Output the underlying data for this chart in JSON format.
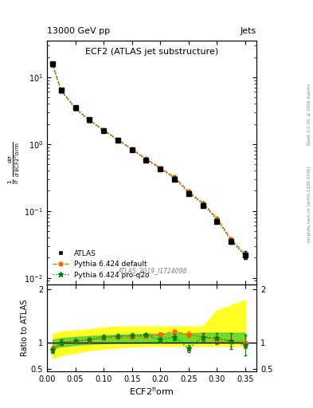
{
  "title_main": "ECF2 (ATLAS jet substructure)",
  "header_left": "13000 GeV pp",
  "header_right": "Jets",
  "watermark": "ATLAS_2019_I1724098",
  "right_label_top": "Rivet 3.1.10, ≥ 300k events",
  "right_label_bottom": "mcplots.cern.ch [arXiv:1306.3436]",
  "xlabel": "ECF2⁺orm",
  "ylabel_ratio": "Ratio to ATLAS",
  "ecf2_x": [
    0.01,
    0.025,
    0.05,
    0.075,
    0.1,
    0.125,
    0.15,
    0.175,
    0.2,
    0.225,
    0.25,
    0.275,
    0.3,
    0.325,
    0.35
  ],
  "atlas_y": [
    16.0,
    6.5,
    3.5,
    2.3,
    1.6,
    1.15,
    0.82,
    0.58,
    0.42,
    0.3,
    0.18,
    0.12,
    0.07,
    0.035,
    0.022
  ],
  "atlas_yerr": [
    0.5,
    0.2,
    0.1,
    0.07,
    0.05,
    0.04,
    0.03,
    0.02,
    0.015,
    0.012,
    0.008,
    0.005,
    0.004,
    0.003,
    0.003
  ],
  "pythia_default_y": [
    15.5,
    6.4,
    3.45,
    2.28,
    1.62,
    1.17,
    0.84,
    0.6,
    0.44,
    0.32,
    0.195,
    0.132,
    0.078,
    0.038,
    0.022
  ],
  "pythia_proq2o_y": [
    15.3,
    6.3,
    3.42,
    2.25,
    1.6,
    1.15,
    0.83,
    0.59,
    0.43,
    0.31,
    0.185,
    0.128,
    0.074,
    0.036,
    0.021
  ],
  "ratio_default": [
    0.87,
    1.0,
    1.02,
    1.04,
    1.08,
    1.1,
    1.1,
    1.12,
    1.15,
    1.2,
    1.15,
    1.1,
    1.05,
    1.02,
    1.0
  ],
  "ratio_default_err": [
    0.05,
    0.04,
    0.03,
    0.03,
    0.03,
    0.03,
    0.03,
    0.03,
    0.04,
    0.04,
    0.05,
    0.06,
    0.08,
    0.1,
    0.12
  ],
  "ratio_proq2o": [
    0.85,
    1.0,
    1.03,
    1.05,
    1.1,
    1.12,
    1.13,
    1.14,
    1.05,
    1.1,
    0.88,
    1.1,
    1.08,
    1.02,
    0.95
  ],
  "ratio_proq2o_err": [
    0.06,
    0.05,
    0.04,
    0.04,
    0.04,
    0.04,
    0.04,
    0.04,
    0.05,
    0.06,
    0.07,
    0.08,
    0.1,
    0.15,
    0.2
  ],
  "band_yellow_lo": [
    0.7,
    0.75,
    0.8,
    0.85,
    0.88,
    0.9,
    0.92,
    0.93,
    0.93,
    0.93,
    0.93,
    0.93,
    0.93,
    0.93,
    0.93
  ],
  "band_yellow_hi": [
    1.15,
    1.2,
    1.22,
    1.25,
    1.28,
    1.3,
    1.3,
    1.3,
    1.3,
    1.3,
    1.3,
    1.3,
    1.6,
    1.7,
    1.8
  ],
  "band_green_lo": [
    0.88,
    0.92,
    0.95,
    0.97,
    0.98,
    0.99,
    0.99,
    1.0,
    1.0,
    1.0,
    1.0,
    1.0,
    1.0,
    1.0,
    1.0
  ],
  "band_green_hi": [
    1.05,
    1.08,
    1.1,
    1.12,
    1.13,
    1.14,
    1.15,
    1.16,
    1.16,
    1.17,
    1.17,
    1.18,
    1.18,
    1.18,
    1.18
  ],
  "color_atlas": "#000000",
  "color_default": "#ff6600",
  "color_proq2o": "#008000",
  "color_yellow": "#ffff00",
  "color_green": "#33cc33",
  "xlim": [
    0.0,
    0.37
  ],
  "ylim_main": [
    0.008,
    35
  ],
  "ylim_ratio": [
    0.45,
    2.1
  ]
}
